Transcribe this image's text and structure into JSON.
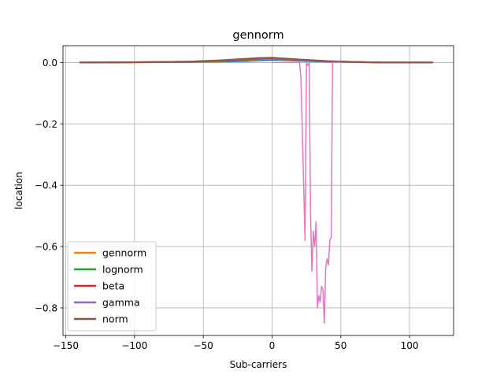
{
  "chart_data": {
    "type": "line",
    "title": "gennorm",
    "xlabel": "Sub-carriers",
    "ylabel": "location",
    "xlim": [
      -152,
      132
    ],
    "ylim": [
      -0.89,
      0.055
    ],
    "xticks": [
      -150,
      -100,
      -50,
      0,
      50,
      100
    ],
    "xtick_labels": [
      "−150",
      "−100",
      "−50",
      "0",
      "50",
      "100"
    ],
    "yticks": [
      0.0,
      -0.2,
      -0.4,
      -0.6,
      -0.8
    ],
    "ytick_labels": [
      "0.0",
      "−0.2",
      "−0.4",
      "−0.6",
      "−0.8"
    ],
    "grid": true,
    "legend_position": "lower left",
    "series": [
      {
        "color": "#1f77b4",
        "x": [
          -140,
          -100,
          -60,
          -40,
          -20,
          -10,
          0,
          10,
          20,
          40,
          60,
          80,
          117
        ],
        "y": [
          0.0,
          0.0,
          0.001,
          0.002,
          0.004,
          0.006,
          0.008,
          0.007,
          0.005,
          0.002,
          0.001,
          0.0,
          0.0
        ]
      },
      {
        "name": "gennorm",
        "color": "#ff7f0e",
        "x": [
          -140,
          -100,
          -60,
          -40,
          -20,
          -10,
          0,
          10,
          20,
          40,
          60,
          80,
          117
        ],
        "y": [
          0.0,
          0.0,
          0.002,
          0.004,
          0.008,
          0.011,
          0.012,
          0.01,
          0.008,
          0.004,
          0.001,
          0.0,
          0.0
        ]
      },
      {
        "name": "lognorm",
        "color": "#2ca02c",
        "x": [
          -140,
          -100,
          -60,
          -40,
          -20,
          -10,
          0,
          10,
          20,
          40,
          60,
          80,
          117
        ],
        "y": [
          0.0,
          0.001,
          0.002,
          0.005,
          0.009,
          0.012,
          0.013,
          0.011,
          0.009,
          0.004,
          0.001,
          0.0,
          0.0
        ]
      },
      {
        "name": "beta",
        "color": "#d62728",
        "x": [
          -140,
          -100,
          -60,
          -40,
          -20,
          -10,
          0,
          10,
          20,
          40,
          60,
          80,
          117
        ],
        "y": [
          0.0,
          0.001,
          0.003,
          0.006,
          0.01,
          0.013,
          0.014,
          0.012,
          0.009,
          0.004,
          0.002,
          0.0,
          0.0
        ]
      },
      {
        "name": "gamma",
        "color": "#9467bd",
        "x": [
          -140,
          -100,
          -60,
          -40,
          -20,
          -10,
          0,
          10,
          20,
          40,
          60,
          80,
          117
        ],
        "y": [
          0.0,
          0.001,
          0.003,
          0.006,
          0.011,
          0.014,
          0.015,
          0.012,
          0.009,
          0.004,
          0.002,
          0.0,
          0.0
        ]
      },
      {
        "name": "norm",
        "color": "#8c564b",
        "x": [
          -140,
          -100,
          -60,
          -40,
          -20,
          -10,
          0,
          10,
          20,
          40,
          60,
          80,
          117
        ],
        "y": [
          0.0,
          0.001,
          0.003,
          0.007,
          0.012,
          0.015,
          0.016,
          0.013,
          0.01,
          0.005,
          0.002,
          0.0,
          0.0
        ]
      },
      {
        "color": "#e377c2",
        "x": [
          0,
          10,
          20,
          21,
          24,
          25,
          26,
          27,
          28,
          29,
          30,
          31,
          32,
          33,
          34,
          35,
          36,
          37,
          38,
          39,
          40,
          41,
          42,
          43,
          44,
          45,
          46,
          47,
          50
        ],
        "y": [
          0.0,
          0.0,
          0.0,
          -0.05,
          -0.58,
          0.0,
          -0.01,
          0.0,
          -0.5,
          -0.68,
          -0.55,
          -0.6,
          -0.52,
          -0.8,
          -0.76,
          -0.78,
          -0.73,
          -0.74,
          -0.85,
          -0.67,
          -0.64,
          -0.66,
          -0.58,
          -0.57,
          0.0,
          0.0,
          0.0,
          0.0,
          0.0
        ]
      }
    ]
  }
}
